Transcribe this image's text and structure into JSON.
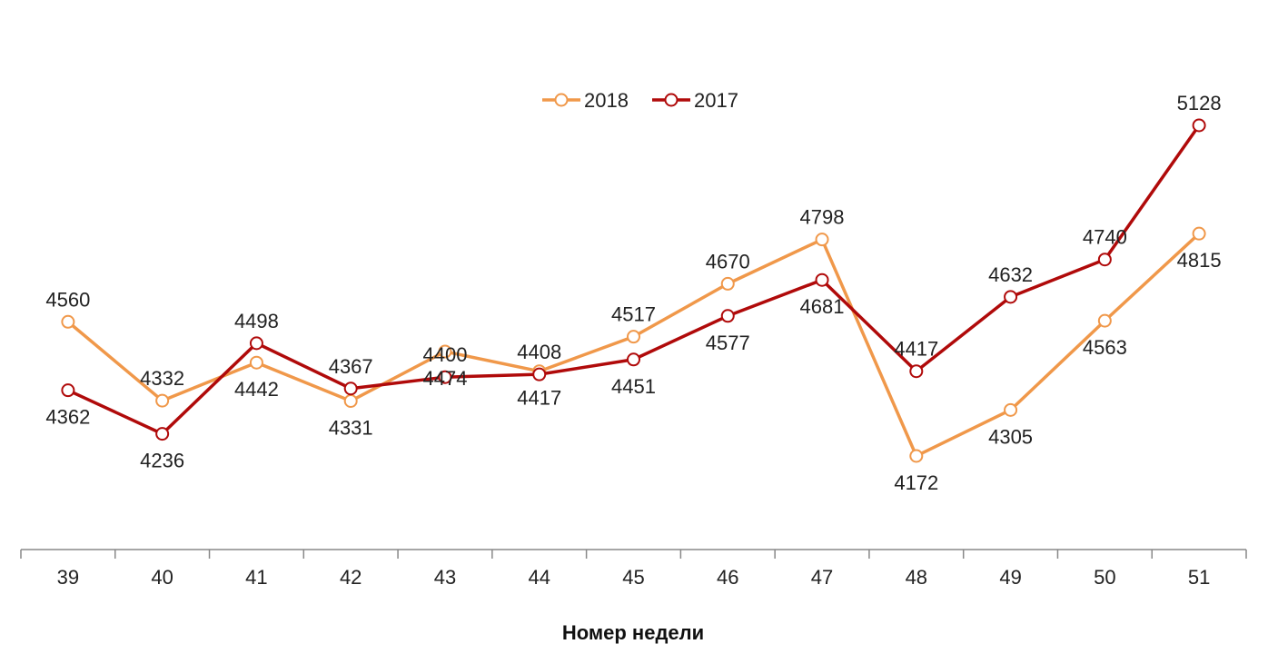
{
  "chart_data": {
    "type": "line",
    "title": "",
    "xlabel": "Номер недели",
    "ylabel": "",
    "categories": [
      "39",
      "40",
      "41",
      "42",
      "43",
      "44",
      "45",
      "46",
      "47",
      "48",
      "49",
      "50",
      "51"
    ],
    "series": [
      {
        "name": "2018",
        "color": "#F0984A",
        "values": [
          4560,
          4332,
          4442,
          4331,
          4474,
          4417,
          4517,
          4670,
          4798,
          4172,
          4305,
          4563,
          4815
        ],
        "label_positions": [
          "above",
          "above",
          "below",
          "below",
          "below",
          "below",
          "above",
          "above",
          "above",
          "below",
          "below",
          "below",
          "below"
        ]
      },
      {
        "name": "2017",
        "color": "#B00A0A",
        "values": [
          4362,
          4236,
          4498,
          4367,
          4400,
          4408,
          4451,
          4577,
          4681,
          4417,
          4632,
          4740,
          5128
        ],
        "label_positions": [
          "below",
          "below",
          "above",
          "above",
          "above",
          "above",
          "below",
          "below",
          "below",
          "above",
          "above",
          "above",
          "above"
        ]
      }
    ],
    "ylim": [
      3950,
      5250
    ],
    "grid": false,
    "legend_position": "top-center"
  }
}
